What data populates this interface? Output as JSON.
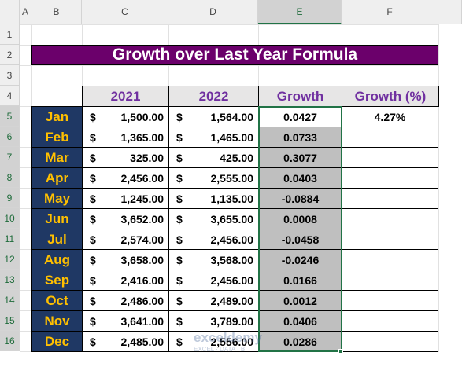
{
  "sheet": {
    "columns": [
      "A",
      "B",
      "C",
      "D",
      "E",
      "F"
    ],
    "rows": [
      "1",
      "2",
      "3",
      "4",
      "5",
      "6",
      "7",
      "8",
      "9",
      "10",
      "11",
      "12",
      "13",
      "14",
      "15",
      "16"
    ],
    "title": "Growth over Last Year Formula",
    "headers": [
      "2021",
      "2022",
      "Growth",
      "Growth (%)"
    ],
    "data": [
      {
        "month": "Jan",
        "c1": "$",
        "a1": "1,500.00",
        "c2": "$",
        "a2": "1,564.00",
        "growth": "0.0427",
        "growth_pct": "4.27%"
      },
      {
        "month": "Feb",
        "c1": "$",
        "a1": "1,365.00",
        "c2": "$",
        "a2": "1,465.00",
        "growth": "0.0733"
      },
      {
        "month": "Mar",
        "c1": "$",
        "a1": "325.00",
        "c2": "$",
        "a2": "425.00",
        "growth": "0.3077"
      },
      {
        "month": "Apr",
        "c1": "$",
        "a1": "2,456.00",
        "c2": "$",
        "a2": "2,555.00",
        "growth": "0.0403"
      },
      {
        "month": "May",
        "c1": "$",
        "a1": "1,245.00",
        "c2": "$",
        "a2": "1,135.00",
        "growth": "-0.0884"
      },
      {
        "month": "Jun",
        "c1": "$",
        "a1": "3,652.00",
        "c2": "$",
        "a2": "3,655.00",
        "growth": "0.0008"
      },
      {
        "month": "Jul",
        "c1": "$",
        "a1": "2,574.00",
        "c2": "$",
        "a2": "2,456.00",
        "growth": "-0.0458"
      },
      {
        "month": "Aug",
        "c1": "$",
        "a1": "3,658.00",
        "c2": "$",
        "a2": "3,568.00",
        "growth": "-0.0246"
      },
      {
        "month": "Sep",
        "c1": "$",
        "a1": "2,416.00",
        "c2": "$",
        "a2": "2,456.00",
        "growth": "0.0166"
      },
      {
        "month": "Oct",
        "c1": "$",
        "a1": "2,486.00",
        "c2": "$",
        "a2": "2,489.00",
        "growth": "0.0012"
      },
      {
        "month": "Nov",
        "c1": "$",
        "a1": "3,641.00",
        "c2": "$",
        "a2": "3,789.00",
        "growth": "0.0406"
      },
      {
        "month": "Dec",
        "c1": "$",
        "a1": "2,485.00",
        "c2": "$",
        "a2": "2,556.00",
        "growth": "0.0286"
      }
    ],
    "watermark": {
      "brand": "exceldemy",
      "tagline": "EXCEL · DATA · BI"
    }
  }
}
